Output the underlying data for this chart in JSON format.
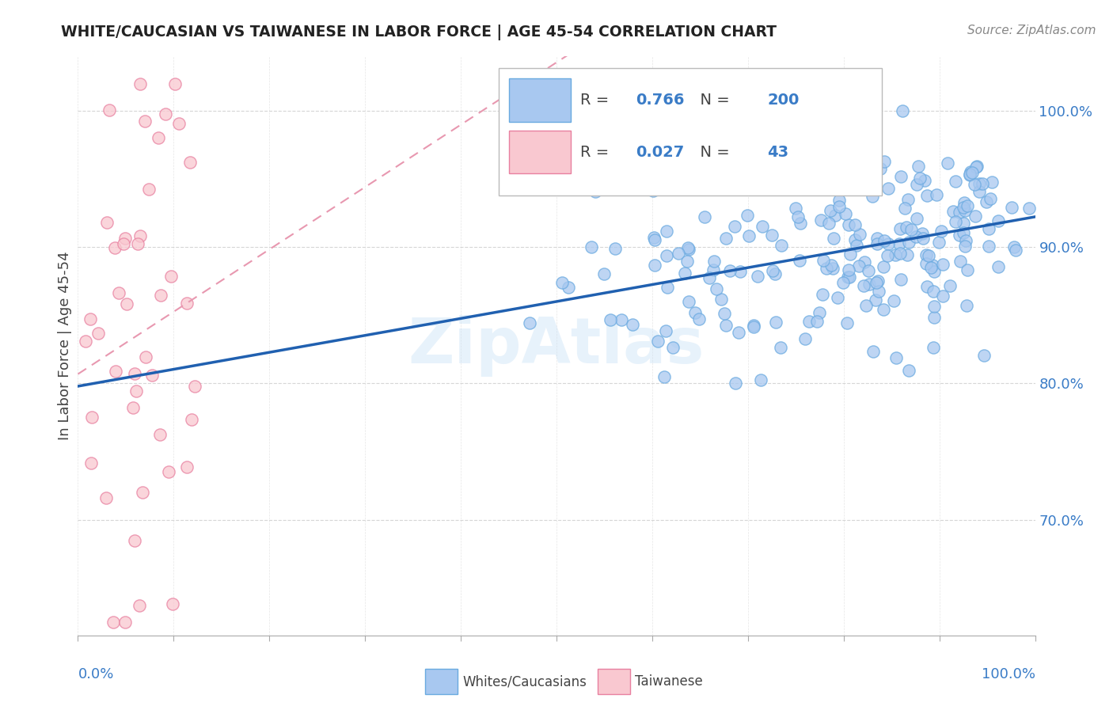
{
  "title": "WHITE/CAUCASIAN VS TAIWANESE IN LABOR FORCE | AGE 45-54 CORRELATION CHART",
  "source_text": "Source: ZipAtlas.com",
  "ylabel": "In Labor Force | Age 45-54",
  "watermark": "ZipAtlas",
  "legend": {
    "blue_label": "Whites/Caucasians",
    "pink_label": "Taiwanese",
    "blue_R": "0.766",
    "blue_N": "200",
    "pink_R": "0.027",
    "pink_N": "43"
  },
  "xlim": [
    0.0,
    1.0
  ],
  "ylim": [
    0.615,
    1.04
  ],
  "blue_dot_color": "#a8c8f0",
  "blue_dot_edge": "#6aaae0",
  "pink_dot_color": "#f9c8d0",
  "pink_dot_edge": "#e880a0",
  "blue_line_color": "#2060b0",
  "pink_line_color": "#e898b0",
  "background_color": "#ffffff",
  "grid_color": "#cccccc",
  "title_color": "#222222",
  "ylabel_color": "#444444",
  "tick_color": "#3a7cc7",
  "value_color": "#3a7cc7",
  "source_color": "#888888",
  "blue_seed": 12,
  "pink_seed": 7
}
